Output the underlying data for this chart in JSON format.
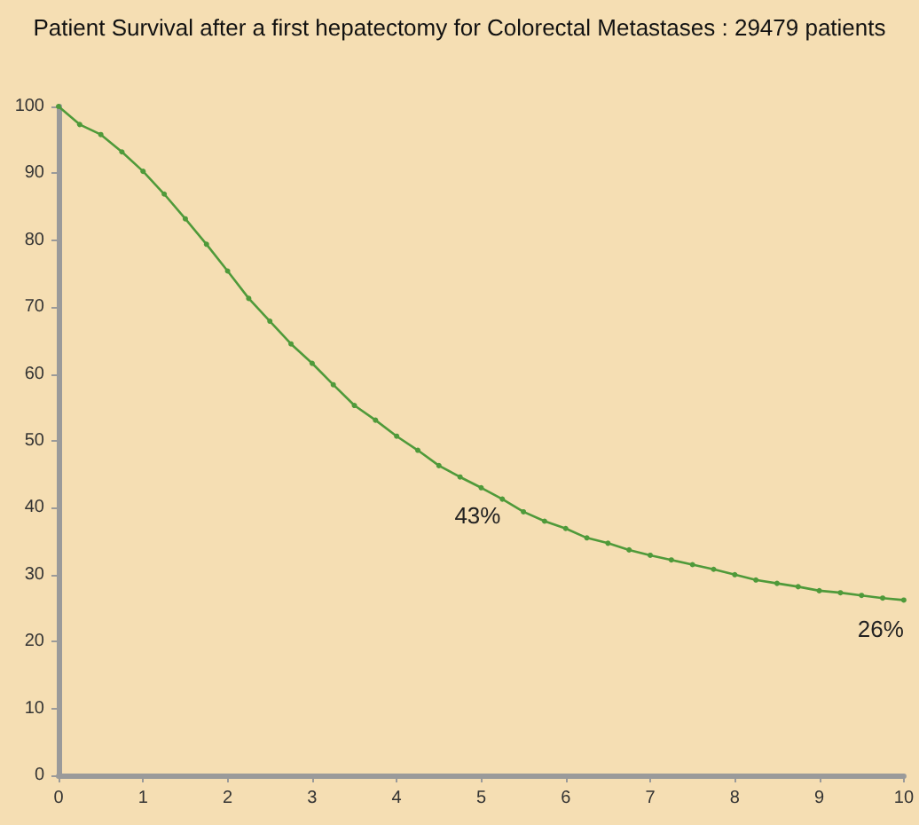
{
  "chart_data": {
    "type": "line",
    "title": "Patient Survival after a first hepatectomy for Colorectal Metastases : 29479 patients",
    "x": [
      0,
      0.25,
      0.5,
      0.75,
      1,
      1.25,
      1.5,
      1.75,
      2,
      2.25,
      2.5,
      2.75,
      3,
      3.25,
      3.5,
      3.75,
      4,
      4.25,
      4.5,
      4.75,
      5,
      5.25,
      5.5,
      5.75,
      6,
      6.25,
      6.5,
      6.75,
      7,
      7.25,
      7.5,
      7.75,
      8,
      8.25,
      8.5,
      8.75,
      9,
      9.25,
      9.5,
      9.75,
      10
    ],
    "series": [
      {
        "color": "#4f9a3a",
        "values": [
          100,
          97.3,
          95.8,
          93.2,
          90.3,
          86.9,
          83.2,
          79.4,
          75.4,
          71.3,
          67.9,
          64.5,
          61.6,
          58.4,
          55.3,
          53.1,
          50.7,
          48.6,
          46.3,
          44.6,
          43,
          41.3,
          39.4,
          38,
          36.9,
          35.5,
          34.7,
          33.7,
          32.9,
          32.2,
          31.5,
          30.8,
          30,
          29.2,
          28.7,
          28.2,
          27.6,
          27.3,
          26.9,
          26.5,
          26.2
        ]
      }
    ],
    "xlim": [
      0,
      10
    ],
    "xticks": [
      0,
      1,
      2,
      3,
      4,
      5,
      6,
      7,
      8,
      9,
      10
    ],
    "ylim": [
      0,
      100
    ],
    "yticks": [
      0,
      10,
      20,
      30,
      40,
      50,
      60,
      70,
      80,
      90,
      100
    ],
    "grid": false,
    "marker": "circle",
    "line_style": "solid",
    "annotations": [
      {
        "text": "43%",
        "x": 5,
        "y": 43
      },
      {
        "text": "26%",
        "x": 10,
        "y": 26
      }
    ]
  }
}
